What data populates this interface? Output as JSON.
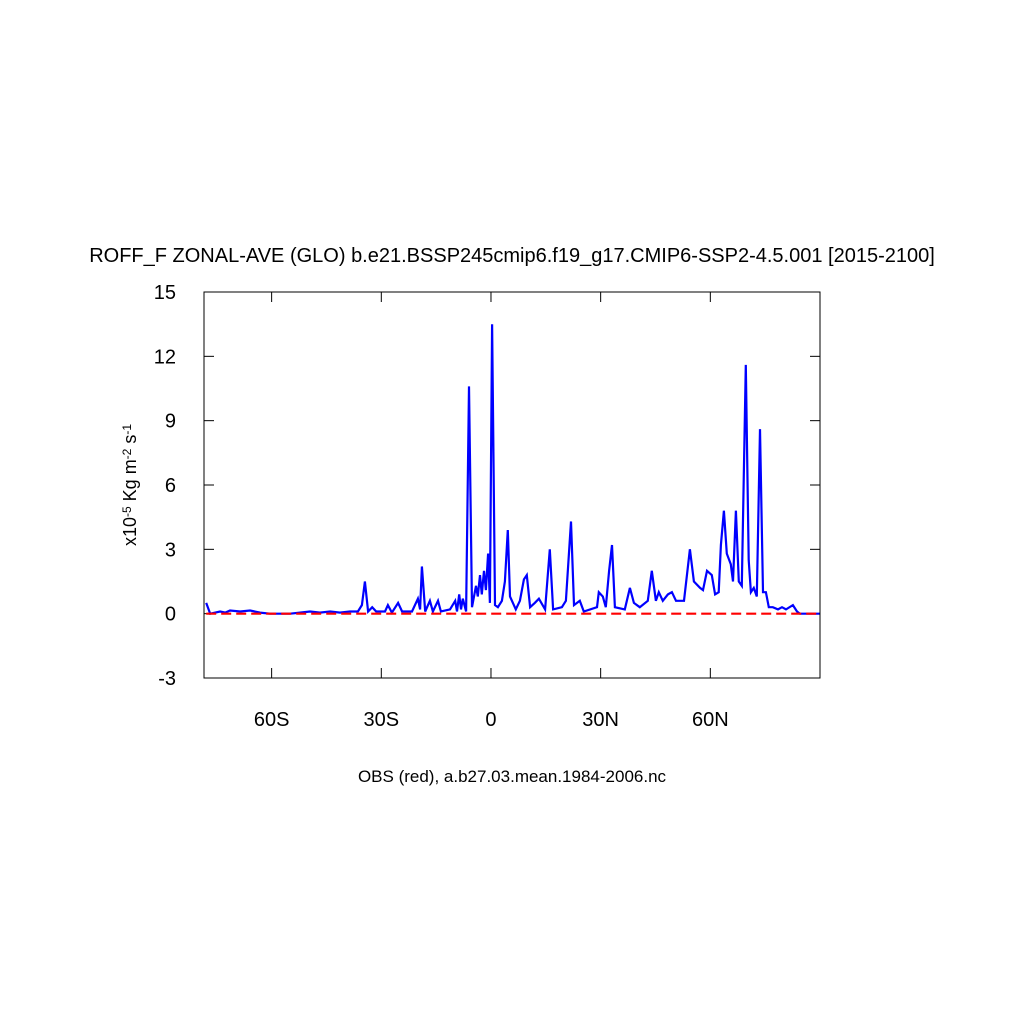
{
  "chart_data": {
    "type": "line",
    "title": "ROFF_F ZONAL-AVE (GLO) b.e21.BSSP245cmip6.f19_g17.CMIP6-SSP2-4.5.001 [2015-2100]",
    "xlabel": "OBS (red), a.b27.03.mean.1984-2006.nc",
    "ylabel": [
      "x10",
      "-5",
      " Kg m",
      "-2",
      " s",
      "-1"
    ],
    "xlim": [
      -78.5,
      90
    ],
    "xticks": [
      {
        "value": -60,
        "label": "60S"
      },
      {
        "value": -30,
        "label": "30S"
      },
      0,
      {
        "value": 30,
        "label": "30N"
      },
      {
        "value": 60,
        "label": "60N"
      }
    ],
    "ylim": [
      -3,
      15
    ],
    "yticks": [
      -3,
      0,
      3,
      6,
      9,
      12,
      15
    ],
    "series": [
      {
        "color": "#0000ff",
        "dash": false,
        "x": [
          -77.9,
          -76.8,
          -74.1,
          -72.7,
          -71.4,
          -68.6,
          -65.9,
          -63.2,
          -60.4,
          -55,
          -52.2,
          -49.5,
          -46.8,
          -44,
          -41.3,
          -38.6,
          -36.4,
          -35.3,
          -34.5,
          -33.6,
          -32.5,
          -31.4,
          -29,
          -28.2,
          -27.1,
          -25.4,
          -24.3,
          -21.6,
          -20,
          -19.4,
          -18.9,
          -18,
          -16.7,
          -15.9,
          -14.5,
          -13.7,
          -11.2,
          -9.8,
          -9.3,
          -8.7,
          -8.2,
          -7.7,
          -6.8,
          -6,
          -5.2,
          -4.1,
          -3.6,
          -3,
          -2.5,
          -1.9,
          -1.4,
          -0.8,
          -0.3,
          0.3,
          1.1,
          1.9,
          3,
          3.8,
          4.6,
          5.2,
          6,
          6.8,
          7.9,
          9,
          9.8,
          10.7,
          12,
          13.1,
          14.8,
          16.1,
          17,
          19.4,
          20.5,
          21.9,
          22.7,
          24.3,
          25.4,
          29,
          29.5,
          30.6,
          31.4,
          32.3,
          33.1,
          33.9,
          36.6,
          38,
          39.1,
          40.7,
          42.9,
          44,
          45.1,
          45.9,
          47,
          48.4,
          49.5,
          50.6,
          52.8,
          54.4,
          55.5,
          57.2,
          58,
          59.1,
          60.4,
          61.3,
          62.3,
          62.9,
          63.7,
          64.5,
          65.6,
          66.2,
          67,
          67.8,
          68.6,
          69.7,
          70.5,
          71.1,
          71.9,
          72.7,
          73.6,
          74.4,
          75.2,
          76,
          77.1,
          78.5,
          79.6,
          80.7,
          82.6,
          83.7,
          84.5,
          90
        ],
        "values": [
          0.5,
          0,
          0.1,
          0.05,
          0.15,
          0.1,
          0.15,
          0.05,
          0,
          0,
          0.05,
          0.1,
          0.05,
          0.1,
          0.05,
          0.1,
          0.1,
          0.4,
          1.5,
          0.1,
          0.3,
          0.1,
          0.1,
          0.4,
          0.05,
          0.5,
          0.1,
          0.1,
          0.7,
          0.2,
          2.2,
          0.1,
          0.6,
          0.1,
          0.6,
          0.1,
          0.2,
          0.6,
          0.1,
          0.9,
          0.2,
          0.7,
          0.1,
          10.6,
          0.3,
          1.3,
          0.8,
          1.8,
          0.9,
          2,
          1.1,
          2.8,
          0.5,
          13.5,
          0.4,
          0.3,
          0.6,
          1.5,
          3.9,
          0.8,
          0.5,
          0.2,
          0.6,
          1.6,
          1.8,
          0.3,
          0.5,
          0.7,
          0.2,
          3,
          0.2,
          0.3,
          0.6,
          4.3,
          0.4,
          0.6,
          0.1,
          0.3,
          1,
          0.8,
          0.3,
          2,
          3.2,
          0.3,
          0.2,
          1.2,
          0.5,
          0.3,
          0.6,
          2,
          0.6,
          1,
          0.6,
          0.9,
          1,
          0.6,
          0.6,
          3,
          1.5,
          1.2,
          1.1,
          2,
          1.8,
          0.9,
          1,
          3.2,
          4.8,
          2.8,
          2.3,
          1.5,
          4.8,
          1.5,
          1.3,
          11.6,
          2.5,
          1,
          1.2,
          0.8,
          8.6,
          1,
          1,
          0.3,
          0.3,
          0.2,
          0.3,
          0.2,
          0.4,
          0.1,
          0,
          0
        ]
      },
      {
        "color": "#ff0000",
        "dash": true,
        "x": [
          -77.9,
          90
        ],
        "values": [
          0,
          0
        ]
      }
    ]
  }
}
